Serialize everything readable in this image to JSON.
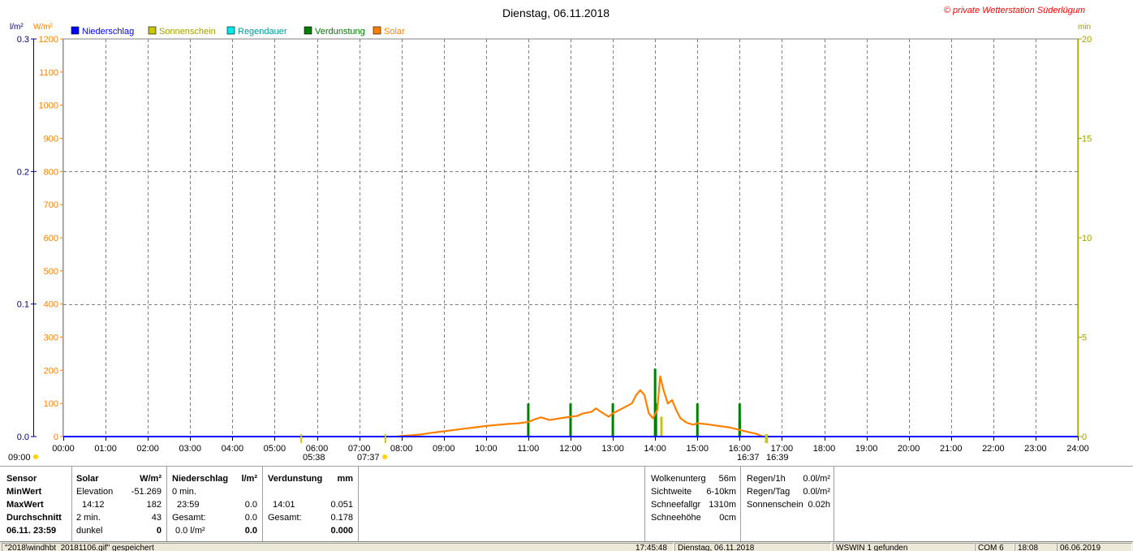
{
  "header": {
    "title": "Dienstag, 06.11.2018",
    "copyright": "© private Wetterstation Süderlügum"
  },
  "legend": [
    {
      "label": "Niederschlag",
      "color": "#0000ff"
    },
    {
      "label": "Sonnenschein",
      "color": "#c8c800"
    },
    {
      "label": "Regendauer",
      "color": "#00e8e8"
    },
    {
      "label": "Verdunstung",
      "color": "#008000"
    },
    {
      "label": "Solar",
      "color": "#ff8000"
    }
  ],
  "chart_data": {
    "type": "line",
    "units": {
      "left_outer": "l/m²",
      "left_inner": "W/m²",
      "right": "min"
    },
    "axes": {
      "niederschlag": {
        "ticks": [
          "0.0",
          "0.1",
          "0.2",
          "0.3"
        ],
        "range": [
          0,
          0.3
        ],
        "color": "#000080"
      },
      "solar": {
        "ticks": [
          "0",
          "100",
          "200",
          "300",
          "400",
          "500",
          "600",
          "700",
          "800",
          "900",
          "1000",
          "1100",
          "1200"
        ],
        "range": [
          0,
          1200
        ],
        "color": "#ff8000"
      },
      "minutes": {
        "ticks": [
          "0",
          "5",
          "10",
          "15",
          "20"
        ],
        "range": [
          0,
          20
        ],
        "color": "#a0a000"
      }
    },
    "x_ticks": [
      "00:00",
      "01:00",
      "02:00",
      "03:00",
      "04:00",
      "05:00",
      "06:00",
      "07:00",
      "08:00",
      "09:00",
      "10:00",
      "11:00",
      "12:00",
      "13:00",
      "14:00",
      "15:00",
      "16:00",
      "17:00",
      "18:00",
      "19:00",
      "20:00",
      "21:00",
      "22:00",
      "23:00",
      "24:00"
    ],
    "x_range_hours": [
      0,
      24
    ],
    "grid": true,
    "sun_events": {
      "labels": [
        "09:00",
        "05:38",
        "07:37",
        "16:37",
        "16:39"
      ],
      "markers_hours": [
        5.63,
        7.62,
        16.62,
        16.65
      ]
    },
    "series": [
      {
        "name": "Solar",
        "color": "#ff8000",
        "axis": "solar",
        "points": [
          [
            7.9,
            0
          ],
          [
            8.0,
            2
          ],
          [
            8.25,
            4
          ],
          [
            8.5,
            7
          ],
          [
            8.75,
            12
          ],
          [
            9.0,
            16
          ],
          [
            9.25,
            20
          ],
          [
            9.5,
            24
          ],
          [
            9.75,
            28
          ],
          [
            10.0,
            32
          ],
          [
            10.25,
            35
          ],
          [
            10.5,
            38
          ],
          [
            10.75,
            40
          ],
          [
            11.0,
            44
          ],
          [
            11.15,
            52
          ],
          [
            11.3,
            58
          ],
          [
            11.5,
            50
          ],
          [
            11.75,
            55
          ],
          [
            12.0,
            60
          ],
          [
            12.15,
            62
          ],
          [
            12.3,
            70
          ],
          [
            12.5,
            75
          ],
          [
            12.6,
            85
          ],
          [
            12.75,
            72
          ],
          [
            12.9,
            60
          ],
          [
            13.0,
            70
          ],
          [
            13.15,
            80
          ],
          [
            13.3,
            90
          ],
          [
            13.45,
            100
          ],
          [
            13.55,
            125
          ],
          [
            13.65,
            140
          ],
          [
            13.75,
            125
          ],
          [
            13.85,
            70
          ],
          [
            13.95,
            55
          ],
          [
            14.05,
            80
          ],
          [
            14.12,
            182
          ],
          [
            14.2,
            140
          ],
          [
            14.3,
            100
          ],
          [
            14.4,
            110
          ],
          [
            14.5,
            80
          ],
          [
            14.6,
            55
          ],
          [
            14.75,
            42
          ],
          [
            14.9,
            36
          ],
          [
            15.0,
            40
          ],
          [
            15.25,
            37
          ],
          [
            15.5,
            32
          ],
          [
            15.75,
            28
          ],
          [
            16.0,
            20
          ],
          [
            16.2,
            14
          ],
          [
            16.4,
            8
          ],
          [
            16.55,
            0
          ]
        ]
      },
      {
        "name": "Verdunstung",
        "color": "#008000",
        "axis": "solar",
        "bars": [
          [
            11.0,
            100
          ],
          [
            12.0,
            100
          ],
          [
            13.0,
            100
          ],
          [
            14.0,
            205
          ],
          [
            14.02,
            100
          ],
          [
            15.0,
            100
          ],
          [
            16.0,
            100
          ],
          [
            16.0,
            50
          ]
        ]
      },
      {
        "name": "Sonnenschein",
        "color": "#c8c800",
        "axis": "solar",
        "bars": [
          [
            14.15,
            60
          ]
        ]
      },
      {
        "name": "Niederschlag",
        "color": "#0000ff",
        "axis": "niederschlag",
        "points": [
          [
            0,
            0
          ],
          [
            24,
            0
          ]
        ]
      }
    ]
  },
  "panel": {
    "sensor": {
      "header": "Sensor",
      "rows": [
        "MinWert",
        "MaxWert",
        "Durchschnitt",
        "06.11. 23:59"
      ]
    },
    "solar": {
      "header": "Solar",
      "unit": "W/m²",
      "rows": [
        [
          "Elevation",
          "-51.269"
        ],
        [
          "14:12",
          "182"
        ],
        [
          "2 min.",
          "43"
        ],
        [
          "dunkel",
          "0"
        ]
      ]
    },
    "niederschlag": {
      "header": "Niederschlag",
      "unit": "l/m²",
      "rows": [
        [
          "0 min.",
          ""
        ],
        [
          "23:59",
          "0.0"
        ],
        [
          "Gesamt:",
          "0.0"
        ],
        [
          "0.0 l/m²",
          "0.0"
        ]
      ]
    },
    "verdunstung": {
      "header": "Verdunstung",
      "unit": "mm",
      "rows": [
        [
          "",
          ""
        ],
        [
          "14:01",
          "0.051"
        ],
        [
          "Gesamt:",
          "0.178"
        ],
        [
          "",
          "0.000"
        ]
      ]
    },
    "wolken": {
      "rows": [
        [
          "Wolkenunterg",
          "56m"
        ],
        [
          "Sichtweite",
          "6-10km"
        ],
        [
          "Schneefallgr",
          "1310m"
        ],
        [
          "Schneehöhe",
          "0cm"
        ]
      ]
    },
    "regen": {
      "rows": [
        [
          "Regen/1h",
          "0.0l/m²"
        ],
        [
          "Regen/Tag",
          "0.0l/m²"
        ],
        [
          "Sonnenschein",
          "0.02h"
        ]
      ]
    }
  },
  "statusbar": {
    "file": "\"2018\\windhbt_20181106.gif\" gespeichert",
    "time": "17:45:48",
    "date": "Dienstag, 06.11.2018",
    "wswin": "WSWIN 1 gefunden",
    "port": "COM 6",
    "clock": "18:08",
    "today": "06.06.2019"
  }
}
